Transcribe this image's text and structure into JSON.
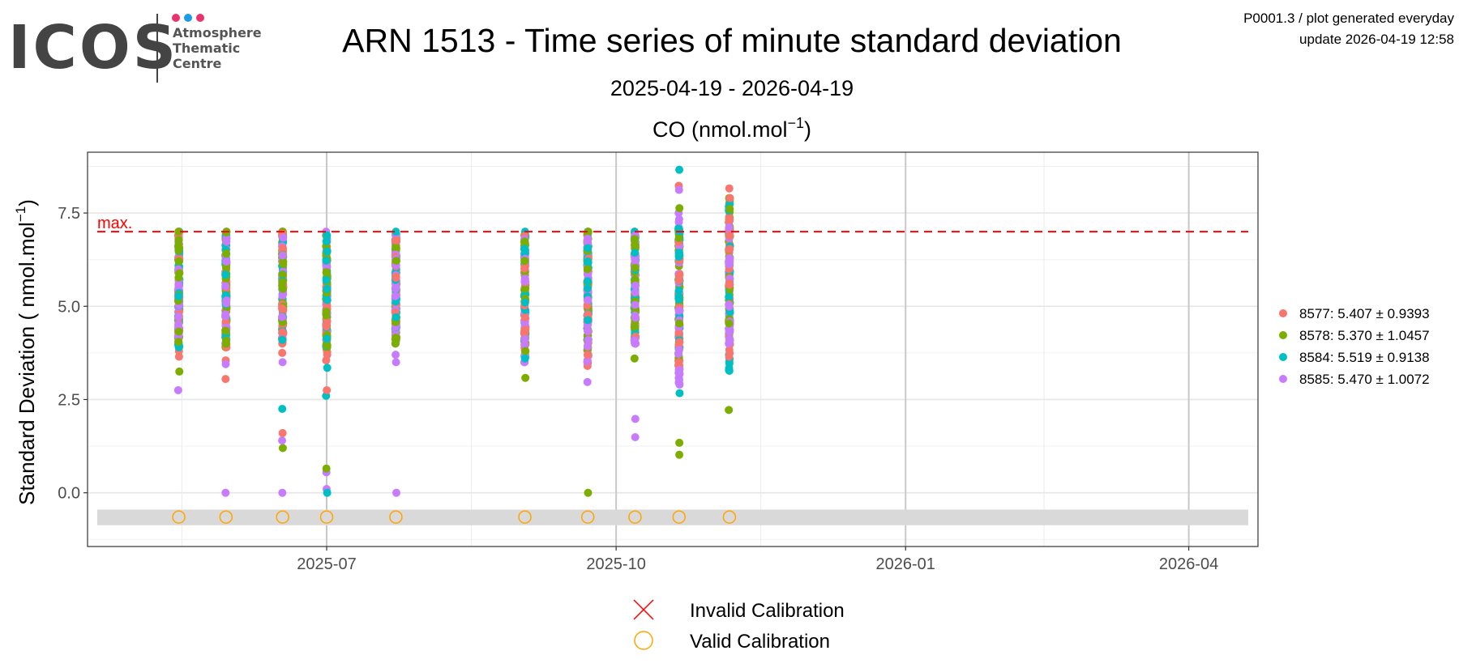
{
  "logo": {
    "text": "ICOS",
    "sub": [
      "Atmosphere",
      "Thematic",
      "Centre"
    ],
    "dot_colors": [
      "#e8336d",
      "#1d9be6",
      "#e8336d"
    ]
  },
  "header": {
    "title": "ARN 1513 - Time series of minute standard deviation",
    "date_range": "2025-04-19 - 2026-04-19",
    "species_main": "CO (nmol.mol",
    "species_sup": "−1",
    "species_close": ")",
    "info_line1": "P0001.3 / plot generated everyday",
    "info_line2": "update  2026-04-19 12:58"
  },
  "chart_data": {
    "type": "scatter",
    "title": "ARN 1513 - Time series of minute standard deviation",
    "xlabel": "",
    "ylabel_main": "Standard Deviation ( nmol.mol",
    "ylabel_sup": "−1",
    "ylabel_close": ")",
    "xlim": [
      "2025-04-16",
      "2026-04-23"
    ],
    "ylim": [
      -1.44,
      9.13
    ],
    "grid": true,
    "x_ticks": [
      {
        "date": "2025-07-01",
        "label": "2025-07"
      },
      {
        "date": "2025-10-01",
        "label": "2025-10"
      },
      {
        "date": "2026-01-01",
        "label": "2026-01"
      },
      {
        "date": "2026-04-01",
        "label": "2026-04"
      }
    ],
    "y_ticks": [
      {
        "value": 0,
        "label": "0.0"
      },
      {
        "value": 2.5,
        "label": "2.5"
      },
      {
        "value": 5,
        "label": "5.0"
      },
      {
        "value": 7.5,
        "label": "7.5"
      }
    ],
    "max_line": {
      "value": 7.0,
      "label": "max.",
      "color": "#ff0000"
    },
    "calibration_band": [
      -0.87,
      -0.45
    ],
    "series": [
      {
        "name": "8577",
        "legend": "8577: 5.407 ± 0.9393",
        "color": "#f8766d"
      },
      {
        "name": "8578",
        "legend": "8578: 5.370 ± 1.0457",
        "color": "#7cae00"
      },
      {
        "name": "8584",
        "legend": "8584: 5.519 ± 0.9138",
        "color": "#00bfc4"
      },
      {
        "name": "8585",
        "legend": "8585: 5.470 ± 1.0072",
        "color": "#c77cff"
      }
    ],
    "legend_position": "right",
    "calibrations": [
      {
        "date": "2025-05-15",
        "status": "valid",
        "data": {
          "8577": {
            "range": [
              3.8,
              7.0
            ],
            "outliers": [
              3.65
            ]
          },
          "8578": {
            "range": [
              3.9,
              7.0
            ],
            "outliers": [
              3.25
            ]
          },
          "8584": {
            "range": [
              3.9,
              7.0
            ],
            "outliers": []
          },
          "8585": {
            "range": [
              4.2,
              7.0
            ],
            "outliers": [
              2.75
            ]
          }
        }
      },
      {
        "date": "2025-05-30",
        "status": "valid",
        "data": {
          "8577": {
            "range": [
              3.9,
              6.9
            ],
            "outliers": [
              3.55,
              3.05
            ]
          },
          "8578": {
            "range": [
              3.9,
              7.0
            ],
            "outliers": []
          },
          "8584": {
            "range": [
              4.1,
              7.0
            ],
            "outliers": []
          },
          "8585": {
            "range": [
              4.0,
              6.9
            ],
            "outliers": [
              3.45,
              0.0
            ]
          }
        }
      },
      {
        "date": "2025-06-17",
        "status": "valid",
        "data": {
          "8577": {
            "range": [
              4.0,
              7.0
            ],
            "outliers": [
              3.75,
              1.6
            ]
          },
          "8578": {
            "range": [
              4.3,
              7.0
            ],
            "outliers": [
              1.2
            ]
          },
          "8584": {
            "range": [
              4.1,
              6.9
            ],
            "outliers": [
              2.25
            ]
          },
          "8585": {
            "range": [
              4.1,
              7.0
            ],
            "outliers": [
              3.5,
              1.4,
              0.0
            ]
          }
        }
      },
      {
        "date": "2025-07-01",
        "status": "valid",
        "data": {
          "8577": {
            "range": [
              3.7,
              6.9
            ],
            "outliers": [
              3.55,
              2.75
            ]
          },
          "8578": {
            "range": [
              3.9,
              6.9
            ],
            "outliers": [
              0.65
            ]
          },
          "8584": {
            "range": [
              3.9,
              6.9
            ],
            "outliers": [
              3.35,
              2.6,
              0.0
            ]
          },
          "8585": {
            "range": [
              4.1,
              7.0
            ],
            "outliers": [
              0.55,
              0.1
            ]
          }
        }
      },
      {
        "date": "2025-07-23",
        "status": "valid",
        "data": {
          "8577": {
            "range": [
              4.5,
              6.8
            ],
            "outliers": []
          },
          "8578": {
            "range": [
              4.0,
              6.9
            ],
            "outliers": []
          },
          "8584": {
            "range": [
              4.4,
              7.0
            ],
            "outliers": []
          },
          "8585": {
            "range": [
              4.0,
              6.9
            ],
            "outliers": [
              3.7,
              3.5,
              0.0
            ]
          }
        }
      },
      {
        "date": "2025-09-02",
        "status": "valid",
        "data": {
          "8577": {
            "range": [
              3.5,
              6.9
            ],
            "outliers": []
          },
          "8578": {
            "range": [
              3.8,
              6.9
            ],
            "outliers": [
              3.08
            ]
          },
          "8584": {
            "range": [
              3.6,
              7.0
            ],
            "outliers": []
          },
          "8585": {
            "range": [
              3.5,
              6.8
            ],
            "outliers": []
          }
        }
      },
      {
        "date": "2025-09-22",
        "status": "valid",
        "data": {
          "8577": {
            "range": [
              3.4,
              6.9
            ],
            "outliers": []
          },
          "8578": {
            "range": [
              3.7,
              7.0
            ],
            "outliers": [
              0.0
            ]
          },
          "8584": {
            "range": [
              4.1,
              7.0
            ],
            "outliers": []
          },
          "8585": {
            "range": [
              3.5,
              6.9
            ],
            "outliers": [
              2.97
            ]
          }
        }
      },
      {
        "date": "2025-10-07",
        "status": "valid",
        "data": {
          "8577": {
            "range": [
              4.0,
              7.0
            ],
            "outliers": []
          },
          "8578": {
            "range": [
              4.2,
              6.8
            ],
            "outliers": [
              3.6
            ]
          },
          "8584": {
            "range": [
              4.1,
              7.0
            ],
            "outliers": []
          },
          "8585": {
            "range": [
              4.0,
              6.9
            ],
            "outliers": [
              1.98,
              1.49
            ]
          }
        }
      },
      {
        "date": "2025-10-21",
        "status": "valid",
        "data": {
          "8577": {
            "range": [
              3.3,
              7.0
            ],
            "outliers": [
              8.23
            ]
          },
          "8578": {
            "range": [
              3.6,
              7.0
            ],
            "outliers": [
              7.63,
              1.34,
              1.02
            ]
          },
          "8584": {
            "range": [
              3.9,
              7.1
            ],
            "outliers": [
              8.66,
              2.67
            ]
          },
          "8585": {
            "range": [
              2.9,
              7.5
            ],
            "outliers": [
              8.12
            ]
          }
        }
      },
      {
        "date": "2025-11-06",
        "status": "valid",
        "data": {
          "8577": {
            "range": [
              3.65,
              7.9
            ],
            "outliers": [
              8.16
            ]
          },
          "8578": {
            "range": [
              4.1,
              7.9
            ],
            "outliers": [
              2.22
            ]
          },
          "8584": {
            "range": [
              3.27,
              7.74
            ],
            "outliers": []
          },
          "8585": {
            "range": [
              4.0,
              7.3
            ],
            "outliers": []
          }
        }
      }
    ],
    "bottom_legend": [
      {
        "label": "Invalid Calibration",
        "symbol": "cross",
        "color": "#ff0000"
      },
      {
        "label": "Valid Calibration",
        "symbol": "circle",
        "color": "#ffa500"
      }
    ]
  }
}
